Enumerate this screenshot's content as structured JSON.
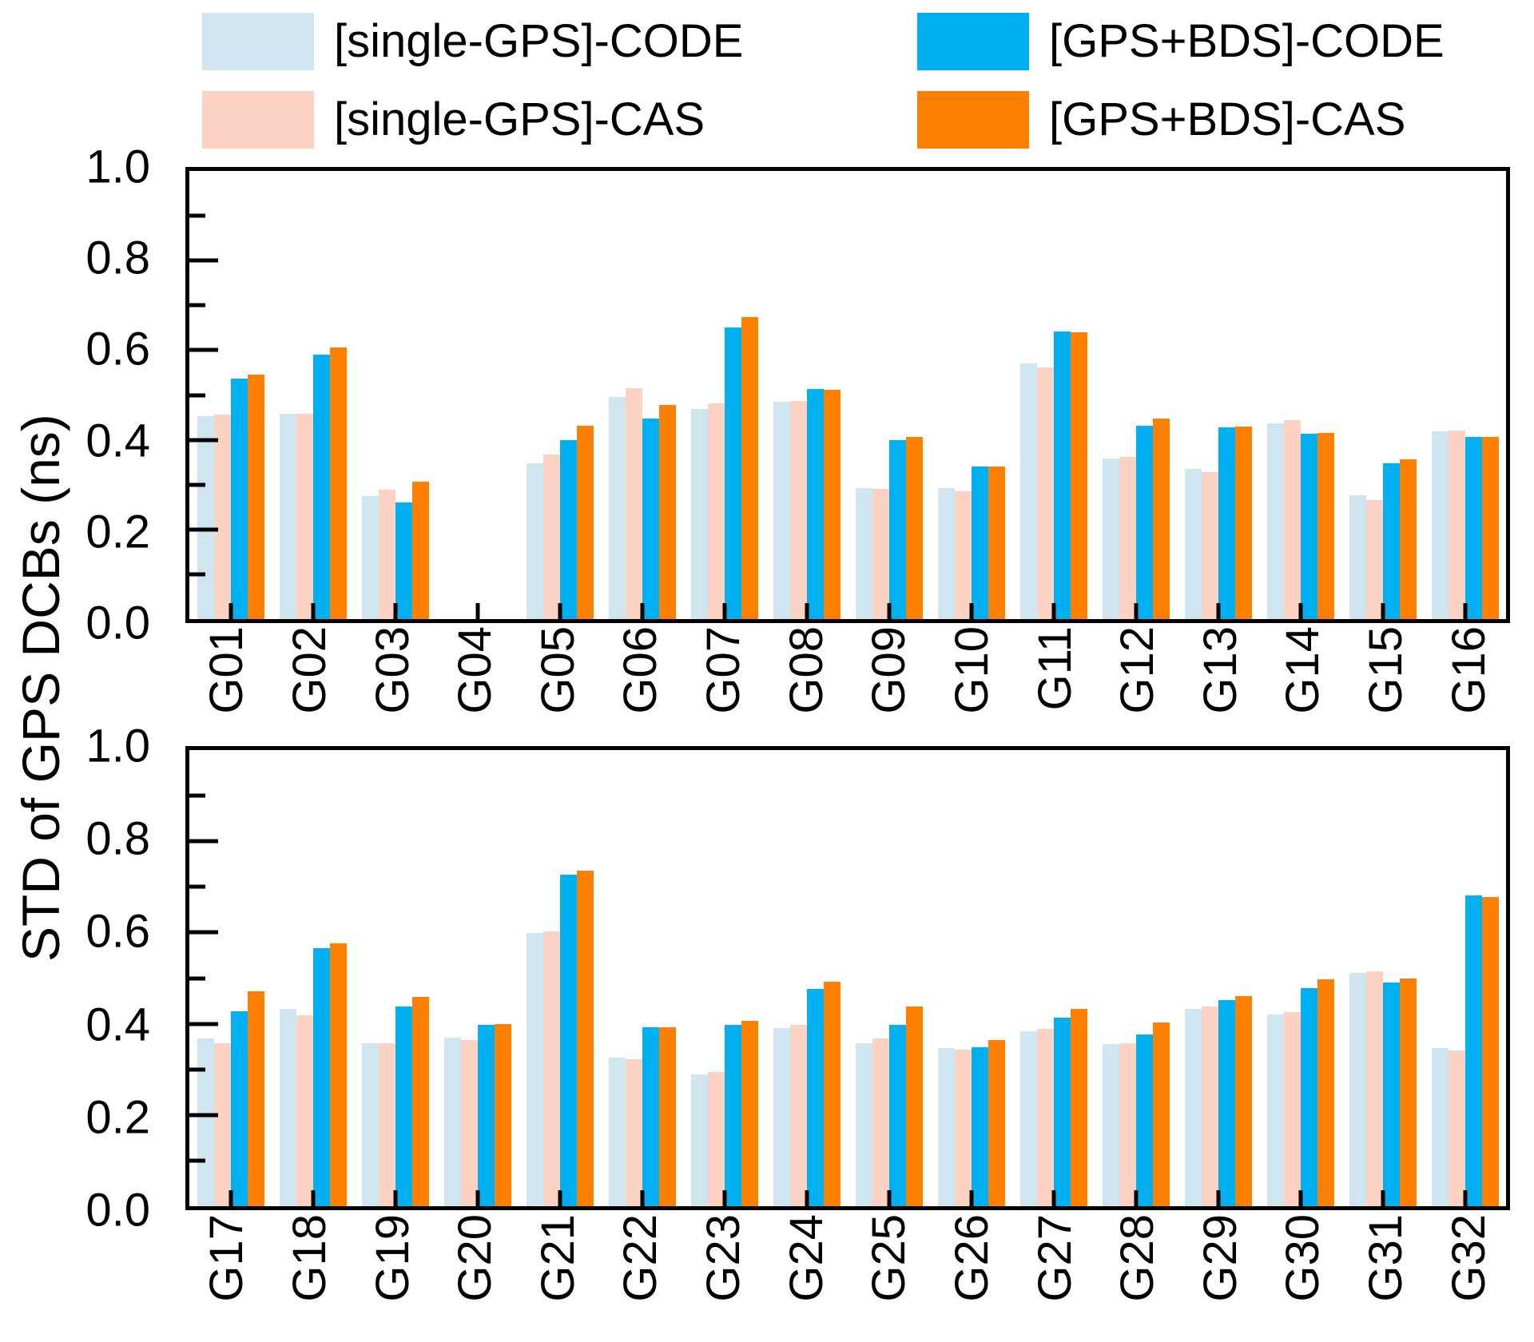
{
  "legend": {
    "items": [
      {
        "label": "[single-GPS]-CODE",
        "color": "#cfe5ef"
      },
      {
        "label": "[single-GPS]-CAS",
        "color": "#fcd3c2"
      },
      {
        "label": "[GPS+BDS]-CODE",
        "color": "#00b0f0"
      },
      {
        "label": "[GPS+BDS]-CAS",
        "color": "#ff8000"
      }
    ]
  },
  "axis": {
    "ylabel": "STD of GPS DCBs (ns)",
    "ytick_labels": [
      "1.0",
      "0.8",
      "0.6",
      "0.4",
      "0.2",
      "0.0"
    ]
  },
  "chart_data": {
    "type": "bar",
    "title": "",
    "ylabel": "STD of GPS DCBs (ns)",
    "ylim": [
      0.0,
      1.0
    ],
    "ytick_major_step": 0.2,
    "ytick_minor_step": 0.1,
    "grid": false,
    "legend_position": "top",
    "series_names": [
      "[single-GPS]-CODE",
      "[single-GPS]-CAS",
      "[GPS+BDS]-CODE",
      "[GPS+BDS]-CAS"
    ],
    "series_colors": [
      "#cfe5ef",
      "#fcd3c2",
      "#00b0f0",
      "#ff8000"
    ],
    "panels": [
      {
        "categories": [
          "G01",
          "G02",
          "G03",
          "G04",
          "G05",
          "G06",
          "G07",
          "G08",
          "G09",
          "G10",
          "G11",
          "G12",
          "G13",
          "G14",
          "G15",
          "G16"
        ],
        "series": [
          {
            "name": "[single-GPS]-CODE",
            "values": [
              0.452,
              0.459,
              0.275,
              0,
              0.347,
              0.495,
              0.469,
              0.485,
              0.292,
              0.292,
              0.57,
              0.358,
              0.335,
              0.437,
              0.277,
              0.419
            ]
          },
          {
            "name": "[single-GPS]-CAS",
            "values": [
              0.456,
              0.459,
              0.288,
              0,
              0.367,
              0.516,
              0.482,
              0.486,
              0.29,
              0.285,
              0.562,
              0.361,
              0.328,
              0.443,
              0.265,
              0.42
            ]
          },
          {
            "name": "[GPS+BDS]-CODE",
            "values": [
              0.537,
              0.59,
              0.26,
              0,
              0.399,
              0.448,
              0.65,
              0.513,
              0.399,
              0.34,
              0.641,
              0.432,
              0.427,
              0.414,
              0.347,
              0.407
            ]
          },
          {
            "name": "[GPS+BDS]-CAS",
            "values": [
              0.546,
              0.606,
              0.306,
              0,
              0.431,
              0.478,
              0.673,
              0.511,
              0.406,
              0.34,
              0.64,
              0.448,
              0.43,
              0.416,
              0.357,
              0.407
            ]
          }
        ]
      },
      {
        "categories": [
          "G17",
          "G18",
          "G19",
          "G20",
          "G21",
          "G22",
          "G23",
          "G24",
          "G25",
          "G26",
          "G27",
          "G28",
          "G29",
          "G30",
          "G31",
          "G32"
        ],
        "series": [
          {
            "name": "[single-GPS]-CODE",
            "values": [
              0.368,
              0.433,
              0.357,
              0.37,
              0.599,
              0.325,
              0.289,
              0.39,
              0.357,
              0.346,
              0.383,
              0.355,
              0.433,
              0.421,
              0.511,
              0.346
            ]
          },
          {
            "name": "[single-GPS]-CAS",
            "values": [
              0.357,
              0.419,
              0.357,
              0.364,
              0.602,
              0.323,
              0.294,
              0.398,
              0.367,
              0.343,
              0.388,
              0.357,
              0.438,
              0.426,
              0.515,
              0.341
            ]
          },
          {
            "name": "[GPS+BDS]-CODE",
            "values": [
              0.427,
              0.565,
              0.437,
              0.397,
              0.727,
              0.392,
              0.398,
              0.477,
              0.398,
              0.348,
              0.414,
              0.376,
              0.452,
              0.478,
              0.49,
              0.682
            ]
          },
          {
            "name": "[GPS+BDS]-CAS",
            "values": [
              0.471,
              0.576,
              0.459,
              0.399,
              0.735,
              0.393,
              0.407,
              0.492,
              0.437,
              0.365,
              0.433,
              0.402,
              0.461,
              0.497,
              0.5,
              0.678
            ]
          }
        ]
      }
    ]
  }
}
